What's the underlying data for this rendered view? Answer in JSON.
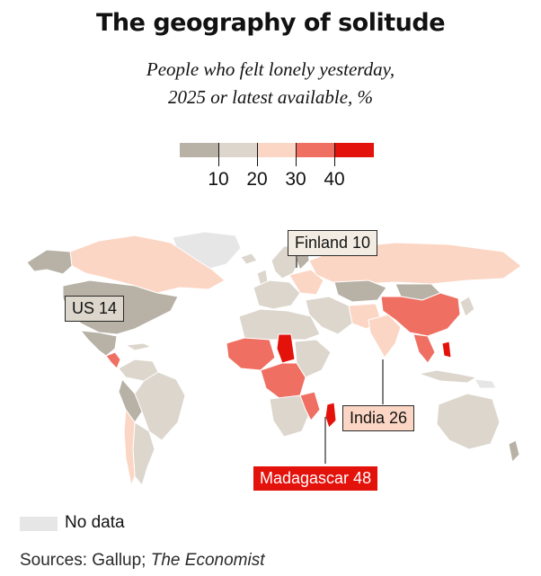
{
  "title": "The geography of solitude",
  "subtitle_line1": "People who felt lonely yesterday,",
  "subtitle_line2": "2025 or latest available, %",
  "legend": {
    "colors": [
      "#b7b1a6",
      "#dcd6cc",
      "#fcd6c4",
      "#ef6f62",
      "#e3120b"
    ],
    "tick_labels": [
      "10",
      "20",
      "30",
      "40"
    ],
    "no_data_label": "No data",
    "no_data_color": "#e6e6e6"
  },
  "callouts": {
    "finland": {
      "label": "Finland 10",
      "country": "Finland",
      "value": 10
    },
    "us": {
      "label": "US 14",
      "country": "United States",
      "value": 14
    },
    "india": {
      "label": "India 26",
      "country": "India",
      "value": 26
    },
    "madagascar": {
      "label": "Madagascar 48",
      "country": "Madagascar",
      "value": 48
    }
  },
  "source_prefix": "Sources: Gallup; ",
  "source_italic": "The Economist"
}
